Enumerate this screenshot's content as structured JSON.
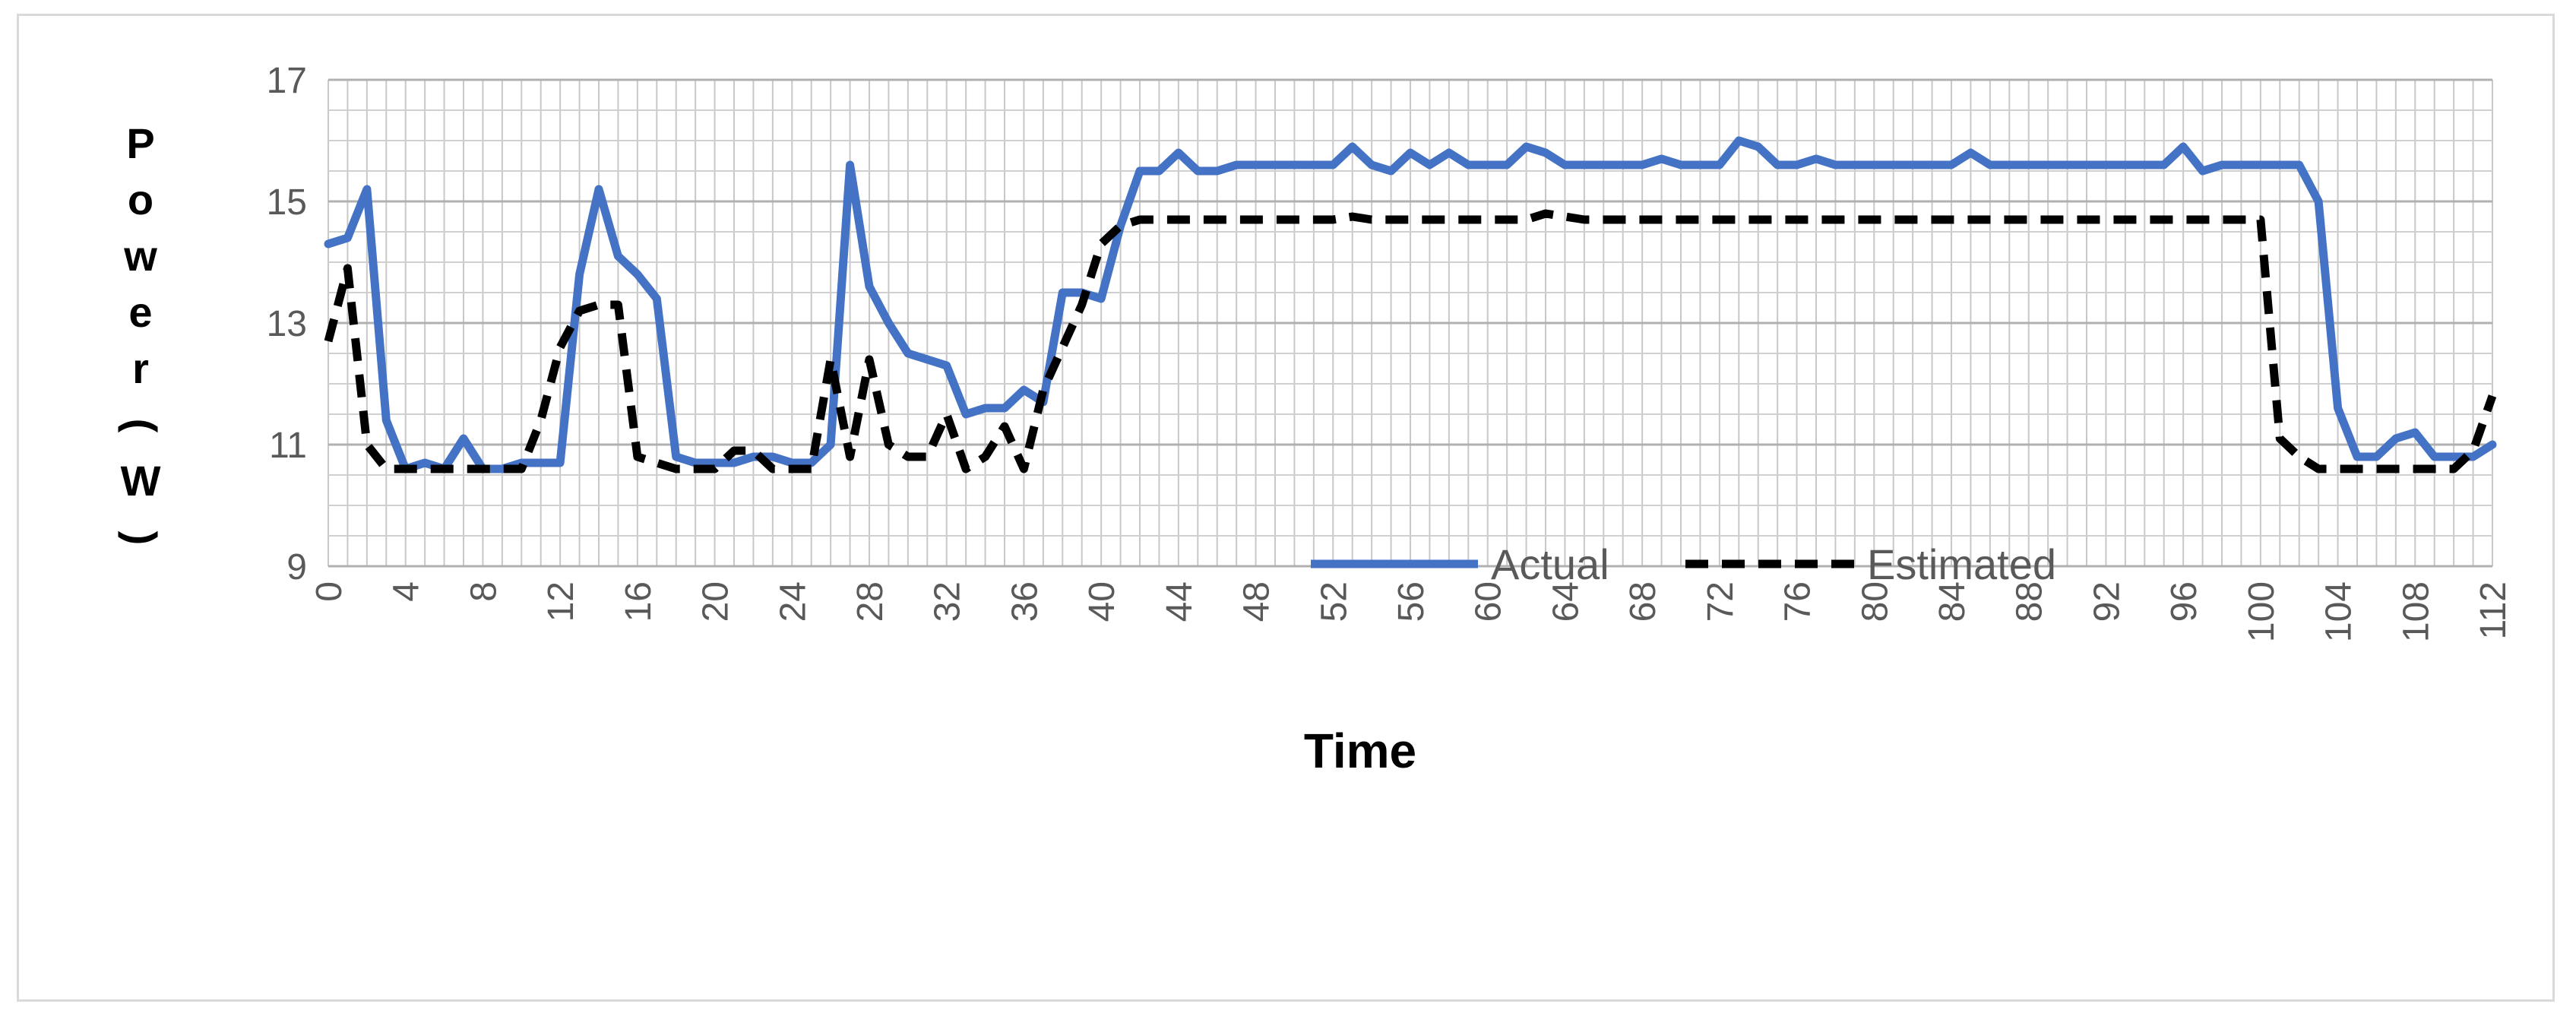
{
  "chart_data": {
    "type": "line",
    "xlabel": "Time",
    "ylabel": "Power (W)",
    "ylim": [
      9,
      17
    ],
    "yticks": [
      9,
      11,
      13,
      15,
      17
    ],
    "xlim": [
      0,
      112
    ],
    "xticks": [
      0,
      4,
      8,
      12,
      16,
      20,
      24,
      28,
      32,
      36,
      40,
      44,
      48,
      52,
      56,
      60,
      64,
      68,
      72,
      76,
      80,
      84,
      88,
      92,
      96,
      100,
      104,
      108,
      112
    ],
    "grid": true,
    "legend": "bottom-center",
    "series": [
      {
        "name": "Actual",
        "color": "#4472c4",
        "style": "solid",
        "values": [
          14.3,
          14.4,
          15.2,
          11.4,
          10.6,
          10.7,
          10.6,
          11.1,
          10.6,
          10.6,
          10.7,
          10.7,
          10.7,
          13.8,
          15.2,
          14.1,
          13.8,
          13.4,
          10.8,
          10.7,
          10.7,
          10.7,
          10.8,
          10.8,
          10.7,
          10.7,
          11.0,
          15.6,
          13.6,
          13.0,
          12.5,
          12.4,
          12.3,
          11.5,
          11.6,
          11.6,
          11.9,
          11.7,
          13.5,
          13.5,
          13.4,
          14.6,
          15.5,
          15.5,
          15.8,
          15.5,
          15.5,
          15.6,
          15.6,
          15.6,
          15.6,
          15.6,
          15.6,
          15.9,
          15.6,
          15.5,
          15.8,
          15.6,
          15.8,
          15.6,
          15.6,
          15.6,
          15.9,
          15.8,
          15.6,
          15.6,
          15.6,
          15.6,
          15.6,
          15.7,
          15.6,
          15.6,
          15.6,
          16.0,
          15.9,
          15.6,
          15.6,
          15.7,
          15.6,
          15.6,
          15.6,
          15.6,
          15.6,
          15.6,
          15.6,
          15.8,
          15.6,
          15.6,
          15.6,
          15.6,
          15.6,
          15.6,
          15.6,
          15.6,
          15.6,
          15.6,
          15.9,
          15.5,
          15.6,
          15.6,
          15.6,
          15.6,
          15.6,
          15.0,
          11.6,
          10.8,
          10.8,
          11.1,
          11.2,
          10.8,
          10.8,
          10.8,
          11.0
        ]
      },
      {
        "name": "Estimated",
        "color": "#000000",
        "style": "dashed",
        "values": [
          12.7,
          13.9,
          11.0,
          10.6,
          10.6,
          10.6,
          10.6,
          10.6,
          10.6,
          10.6,
          10.6,
          11.4,
          12.6,
          13.2,
          13.3,
          13.3,
          10.8,
          10.7,
          10.6,
          10.6,
          10.6,
          10.9,
          10.9,
          10.6,
          10.6,
          10.6,
          12.4,
          10.8,
          12.4,
          11.0,
          10.8,
          10.8,
          11.5,
          10.6,
          10.8,
          11.3,
          10.6,
          11.9,
          12.6,
          13.3,
          14.3,
          14.6,
          14.7,
          14.7,
          14.7,
          14.7,
          14.7,
          14.7,
          14.7,
          14.7,
          14.7,
          14.7,
          14.7,
          14.75,
          14.7,
          14.7,
          14.7,
          14.7,
          14.7,
          14.7,
          14.7,
          14.7,
          14.7,
          14.8,
          14.75,
          14.7,
          14.7,
          14.7,
          14.7,
          14.7,
          14.7,
          14.7,
          14.7,
          14.7,
          14.7,
          14.7,
          14.7,
          14.7,
          14.7,
          14.7,
          14.7,
          14.7,
          14.7,
          14.7,
          14.7,
          14.7,
          14.7,
          14.7,
          14.7,
          14.7,
          14.7,
          14.7,
          14.7,
          14.7,
          14.7,
          14.7,
          14.7,
          14.7,
          14.7,
          14.7,
          14.7,
          11.1,
          10.8,
          10.6,
          10.6,
          10.6,
          10.6,
          10.6,
          10.6,
          10.6,
          10.6,
          10.9,
          11.8
        ]
      }
    ]
  }
}
